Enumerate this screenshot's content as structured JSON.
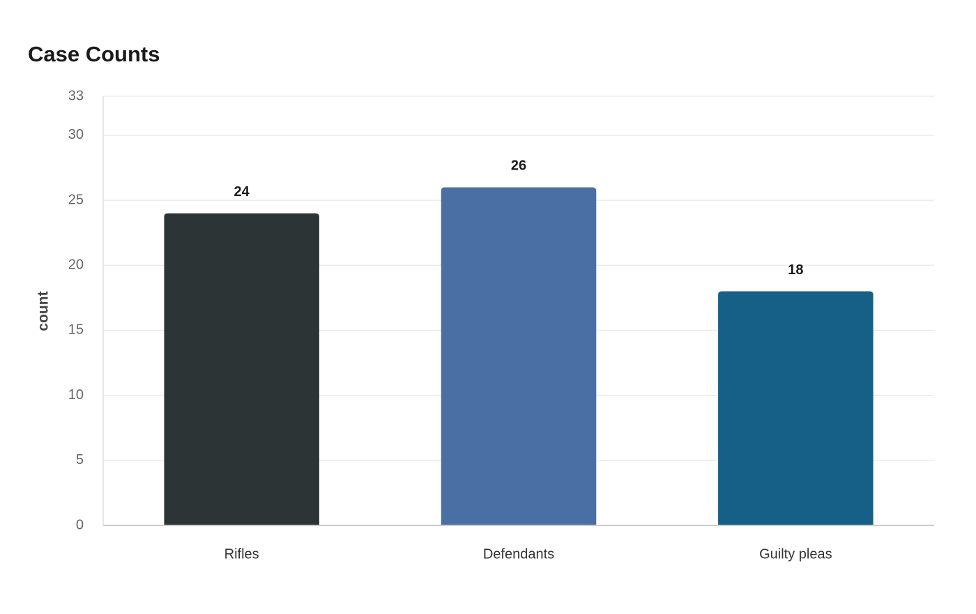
{
  "chart_data": {
    "type": "bar",
    "title": "Case Counts",
    "y_label": "count",
    "categories": [
      "Rifles",
      "Defendants",
      "Guilty pleas"
    ],
    "values": [
      24,
      26,
      18
    ],
    "colors": [
      "#2d3436",
      "#4a6fa5",
      "#166088"
    ],
    "ylim": [
      0,
      33
    ],
    "yticks": [
      0,
      5,
      10,
      15,
      20,
      25,
      30,
      33
    ],
    "grid": true
  }
}
